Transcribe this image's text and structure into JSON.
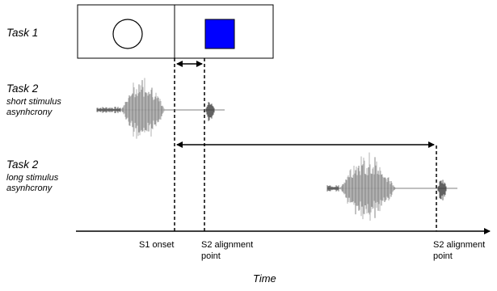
{
  "labels": {
    "task1": "Task 1",
    "task2_short": "Task 2",
    "task2_short_sub": [
      "short stimulus",
      "asynhcrony"
    ],
    "task2_long": "Task 2",
    "task2_long_sub": [
      "long stimulus",
      "asynhcrony"
    ],
    "axis_title": "Time"
  },
  "markers": {
    "s1_onset": "S1 onset",
    "s2_align_short": [
      "S2 alignment",
      "point"
    ],
    "s2_align_long": [
      "S2 alignment",
      "point"
    ]
  },
  "task1_panel": {
    "left_shape": "circle-outline",
    "right_shape": "square",
    "right_shape_color": "#0000ff"
  },
  "colors": {
    "waveform": "#a8a8a8",
    "waveform_dark": "#3a3a3a",
    "line": "#000000"
  }
}
